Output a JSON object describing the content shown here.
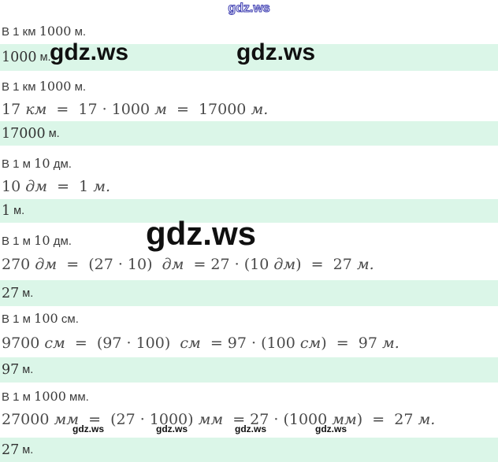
{
  "colors": {
    "band_green": "#dbf6e8",
    "statement_text": "#3b3b3b",
    "math_text": "#4a4a4a",
    "answer_text": "#323232",
    "watermark_black": "#101010",
    "watermark_blue": "#4343b2"
  },
  "watermarks": {
    "top": "gdz.ws",
    "band_left": "gdz.ws",
    "band_right": "gdz.ws",
    "center": "gdz.ws",
    "small": [
      "gdz.ws",
      "gdz.ws",
      "gdz.ws",
      "gdz.ws"
    ]
  },
  "rows": [
    {
      "kind": "statement",
      "segments": [
        [
          "В 1 км ",
          0
        ],
        [
          "1000",
          1
        ],
        [
          " м.",
          0
        ]
      ]
    },
    {
      "kind": "answer",
      "segments": [
        [
          "1000",
          1
        ],
        [
          " м.",
          0
        ]
      ]
    },
    {
      "kind": "statement",
      "segments": [
        [
          "В 1 км ",
          0
        ],
        [
          "1000",
          1
        ],
        [
          " м.",
          0
        ]
      ]
    },
    {
      "kind": "math",
      "segments": [
        [
          "17 ",
          1
        ],
        [
          "км",
          2
        ],
        [
          "  =  17 · 1000 ",
          1
        ],
        [
          "м",
          2
        ],
        [
          "  =  17000 ",
          1
        ],
        [
          "м.",
          2
        ]
      ]
    },
    {
      "kind": "answer",
      "segments": [
        [
          "17000",
          1
        ],
        [
          " м.",
          0
        ]
      ]
    },
    {
      "kind": "statement",
      "segments": [
        [
          "В 1 м ",
          0
        ],
        [
          "10",
          1
        ],
        [
          " дм.",
          0
        ]
      ]
    },
    {
      "kind": "math",
      "segments": [
        [
          "10 ",
          1
        ],
        [
          "дм",
          2
        ],
        [
          "  =  1 ",
          1
        ],
        [
          "м.",
          2
        ]
      ]
    },
    {
      "kind": "answer",
      "segments": [
        [
          "1",
          1
        ],
        [
          " м.",
          0
        ]
      ]
    },
    {
      "kind": "statement",
      "segments": [
        [
          "В 1 м ",
          0
        ],
        [
          "10",
          1
        ],
        [
          " дм.",
          0
        ]
      ]
    },
    {
      "kind": "math",
      "segments": [
        [
          "270 ",
          1
        ],
        [
          "дм",
          2
        ],
        [
          "  =  (27 · 10)  ",
          1
        ],
        [
          "дм",
          2
        ],
        [
          "  = 27 · (10 ",
          1
        ],
        [
          "дм",
          2
        ],
        [
          ")  =  27 ",
          1
        ],
        [
          "м.",
          2
        ]
      ]
    },
    {
      "kind": "answer",
      "segments": [
        [
          "27",
          1
        ],
        [
          " м.",
          0
        ]
      ]
    },
    {
      "kind": "statement",
      "segments": [
        [
          "В 1 м ",
          0
        ],
        [
          "100",
          1
        ],
        [
          " см.",
          0
        ]
      ]
    },
    {
      "kind": "math",
      "segments": [
        [
          "9700 ",
          1
        ],
        [
          "см",
          2
        ],
        [
          "  =  (97 · 100)  ",
          1
        ],
        [
          "см",
          2
        ],
        [
          "  = 97 · (100 ",
          1
        ],
        [
          "см",
          2
        ],
        [
          ")  =  97 ",
          1
        ],
        [
          "м.",
          2
        ]
      ]
    },
    {
      "kind": "answer",
      "segments": [
        [
          "97",
          1
        ],
        [
          " м.",
          0
        ]
      ]
    },
    {
      "kind": "statement",
      "segments": [
        [
          "В 1 м ",
          0
        ],
        [
          "1000",
          1
        ],
        [
          " мм.",
          0
        ]
      ]
    },
    {
      "kind": "math",
      "segments": [
        [
          "27000 ",
          1
        ],
        [
          "мм",
          2
        ],
        [
          "  =  (27 · 1000) ",
          1
        ],
        [
          "мм",
          2
        ],
        [
          "  = 27 · (1000 ",
          1
        ],
        [
          "мм",
          2
        ],
        [
          ")  =  27 ",
          1
        ],
        [
          "м.",
          2
        ]
      ]
    },
    {
      "kind": "answer",
      "segments": [
        [
          "27",
          1
        ],
        [
          " м.",
          0
        ]
      ]
    }
  ]
}
